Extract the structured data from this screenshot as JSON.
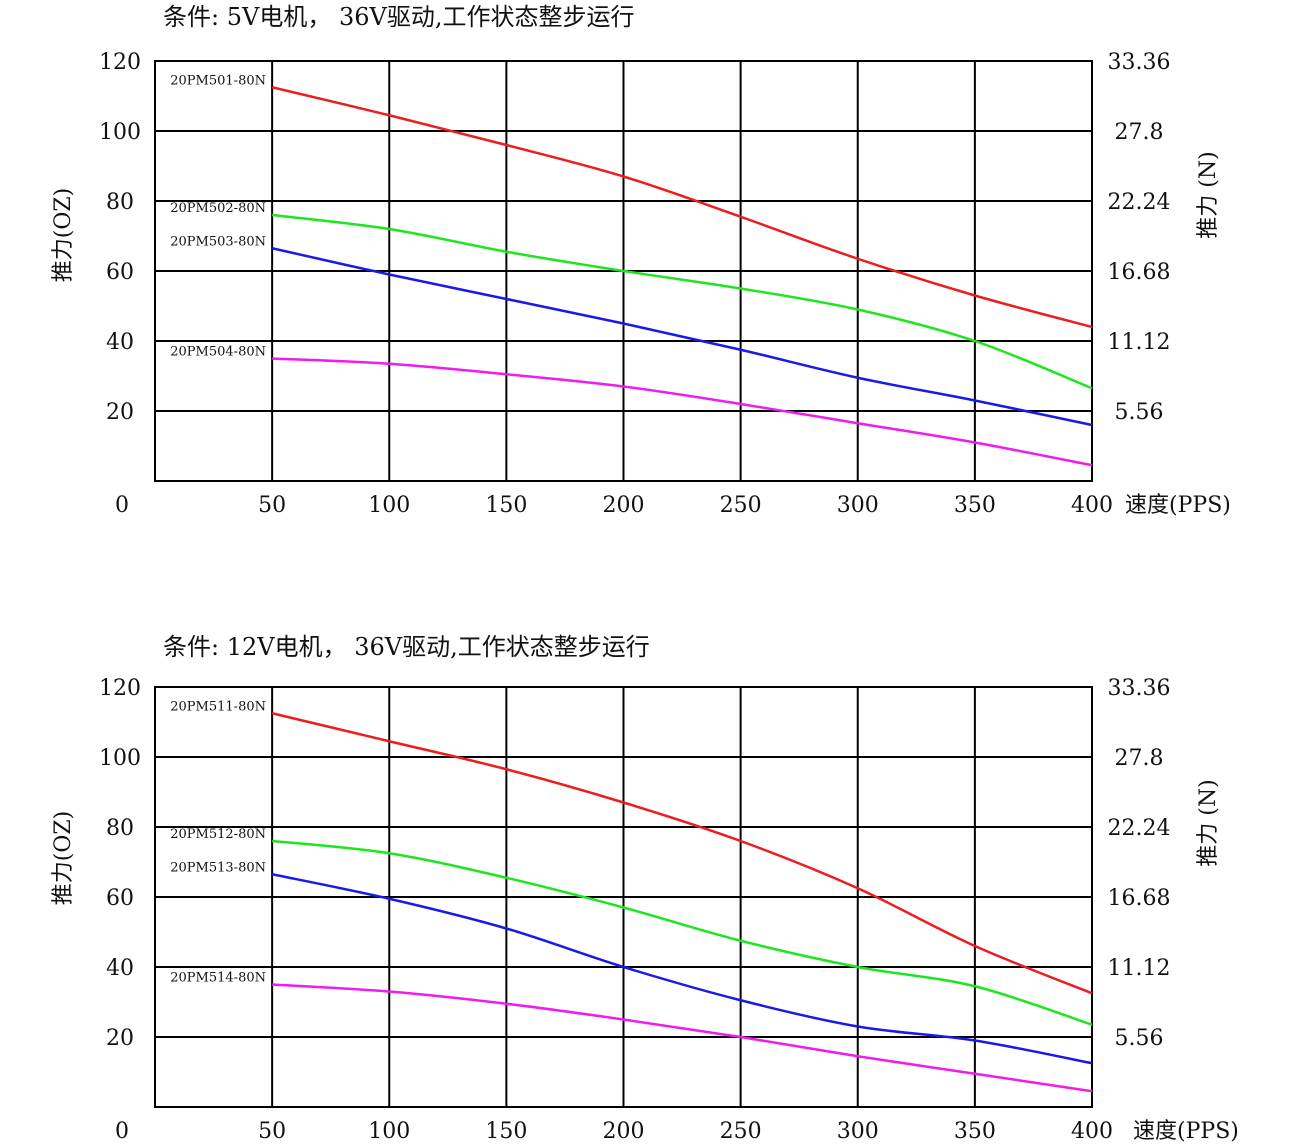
{
  "chart_data": [
    {
      "type": "line",
      "condition_text": "条件: 5V电机， 36V驱动,工作状态整步运行",
      "ylabel": "推力(OZ)",
      "ylabel_right": "推力 (N)",
      "xlabel": "速度(PPS)",
      "origin_label": "0",
      "x_ticks": [
        "50",
        "100",
        "150",
        "200",
        "250",
        "300",
        "350",
        "400"
      ],
      "y_ticks": [
        "20",
        "40",
        "60",
        "80",
        "100",
        "120"
      ],
      "y_ticks_right": [
        "5.56",
        "11.12",
        "16.68",
        "22.24",
        "27.8",
        "33.36"
      ],
      "xlim": [
        0,
        400
      ],
      "ylim": [
        0,
        120
      ],
      "grid": true,
      "x": [
        50,
        100,
        150,
        200,
        250,
        300,
        350,
        400
      ],
      "series": [
        {
          "name": "20PM501-80N",
          "color": "#ee1c1c",
          "values": [
            112.5,
            104.5,
            96,
            87,
            75.5,
            63.5,
            53,
            44
          ]
        },
        {
          "name": "20PM502-80N",
          "color": "#1ee61e",
          "values": [
            76,
            72,
            65.5,
            60,
            55,
            49,
            40,
            26.5
          ]
        },
        {
          "name": "20PM503-80N",
          "color": "#1a1ae6",
          "values": [
            66.5,
            59,
            52,
            45,
            37.5,
            29.5,
            23,
            16
          ]
        },
        {
          "name": "20PM504-80N",
          "color": "#ee1cee",
          "values": [
            35,
            33.5,
            30.5,
            27,
            22,
            16.5,
            11,
            4.5
          ]
        }
      ]
    },
    {
      "type": "line",
      "condition_text": "条件: 12V电机， 36V驱动,工作状态整步运行",
      "ylabel": "推力(OZ)",
      "ylabel_right": "推力 (N)",
      "xlabel": "速度(PPS)",
      "origin_label": "0",
      "x_ticks": [
        "50",
        "100",
        "150",
        "200",
        "250",
        "300",
        "350",
        "400"
      ],
      "y_ticks": [
        "20",
        "40",
        "60",
        "80",
        "100",
        "120"
      ],
      "y_ticks_right": [
        "5.56",
        "11.12",
        "16.68",
        "22.24",
        "27.8",
        "33.36"
      ],
      "xlim": [
        0,
        400
      ],
      "ylim": [
        0,
        120
      ],
      "grid": true,
      "x": [
        50,
        100,
        150,
        200,
        250,
        300,
        350,
        400
      ],
      "series": [
        {
          "name": "20PM511-80N",
          "color": "#ee1c1c",
          "values": [
            112.5,
            104.5,
            96.5,
            87,
            76,
            62.5,
            46,
            32.5
          ]
        },
        {
          "name": "20PM512-80N",
          "color": "#1ee61e",
          "values": [
            76,
            72.5,
            65.5,
            57,
            47.5,
            40,
            34.5,
            23.5
          ]
        },
        {
          "name": "20PM513-80N",
          "color": "#1a1ae6",
          "values": [
            66.5,
            59.5,
            51,
            40,
            30.5,
            23,
            19,
            12.5
          ]
        },
        {
          "name": "20PM514-80N",
          "color": "#ee1cee",
          "values": [
            35,
            33,
            29.5,
            25,
            20,
            14.5,
            9.5,
            4.5
          ]
        }
      ]
    }
  ]
}
